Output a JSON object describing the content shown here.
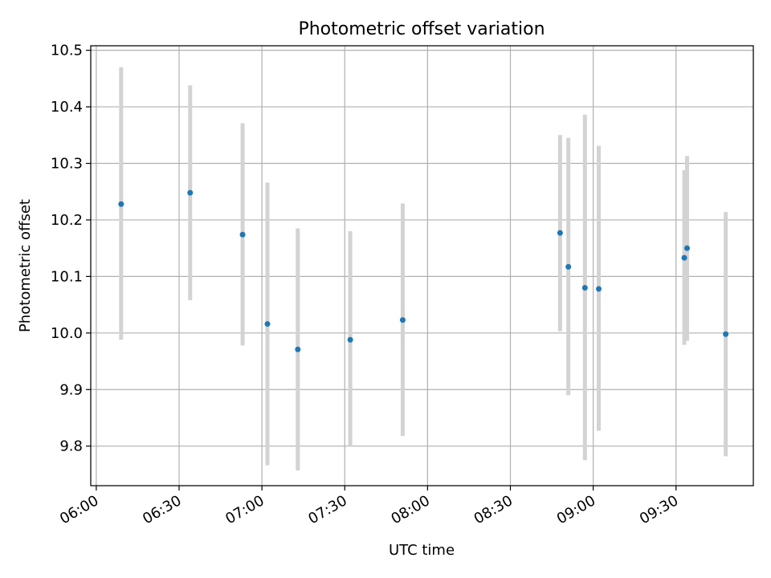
{
  "chart_data": {
    "type": "scatter",
    "title": "Photometric offset variation",
    "xlabel": "UTC time",
    "ylabel": "Photometric offset",
    "x_ticks": [
      "06:00",
      "06:30",
      "07:00",
      "07:30",
      "08:00",
      "08:30",
      "09:00",
      "09:30"
    ],
    "y_ticks": [
      "9.8",
      "9.9",
      "10.0",
      "10.1",
      "10.2",
      "10.3",
      "10.4",
      "10.5"
    ],
    "xlim": [
      "05:58",
      "09:58"
    ],
    "ylim": [
      9.73,
      10.508
    ],
    "grid": true,
    "colors": {
      "point": "#1f77b4",
      "errorbar": "#d3d3d3",
      "grid": "#b0b0b0"
    },
    "series": [
      {
        "points": [
          {
            "x": "06:09",
            "y": 10.228,
            "low": 9.988,
            "high": 10.47
          },
          {
            "x": "06:34",
            "y": 10.248,
            "low": 10.058,
            "high": 10.438
          },
          {
            "x": "06:53",
            "y": 10.174,
            "low": 9.978,
            "high": 10.371
          },
          {
            "x": "07:02",
            "y": 10.016,
            "low": 9.766,
            "high": 10.266
          },
          {
            "x": "07:13",
            "y": 9.971,
            "low": 9.757,
            "high": 10.185
          },
          {
            "x": "07:32",
            "y": 9.988,
            "low": 9.8,
            "high": 10.18
          },
          {
            "x": "07:51",
            "y": 10.023,
            "low": 9.818,
            "high": 10.229
          },
          {
            "x": "08:48",
            "y": 10.177,
            "low": 10.003,
            "high": 10.35
          },
          {
            "x": "08:51",
            "y": 10.117,
            "low": 9.89,
            "high": 10.345
          },
          {
            "x": "08:57",
            "y": 10.08,
            "low": 9.775,
            "high": 10.386
          },
          {
            "x": "09:02",
            "y": 10.078,
            "low": 9.827,
            "high": 10.331
          },
          {
            "x": "09:33",
            "y": 10.133,
            "low": 9.979,
            "high": 10.288
          },
          {
            "x": "09:34",
            "y": 10.15,
            "low": 9.986,
            "high": 10.313
          },
          {
            "x": "09:48",
            "y": 9.998,
            "low": 9.782,
            "high": 10.214
          }
        ]
      }
    ]
  }
}
